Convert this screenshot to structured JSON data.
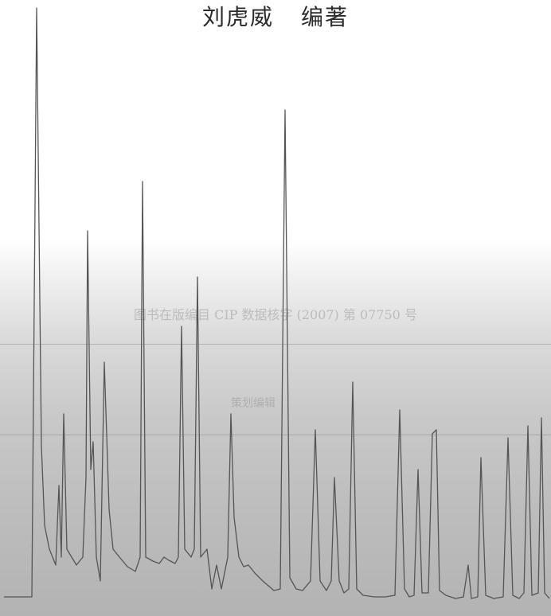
{
  "page": {
    "title_author": "刘虎威",
    "title_role": "编著",
    "ghost_text_line1": "图书在版编目 CIP 数据核字 (2007) 第 07750 号",
    "ghost_text_line2": "策划编辑"
  },
  "chart_data": {
    "type": "line",
    "title": "",
    "xlabel": "",
    "ylabel": "",
    "series": [
      {
        "values": [
          [
            5,
            750
          ],
          [
            40,
            750
          ],
          [
            46,
            10
          ],
          [
            52,
            560
          ],
          [
            56,
            660
          ],
          [
            62,
            690
          ],
          [
            70,
            710
          ],
          [
            74,
            610
          ],
          [
            77,
            700
          ],
          [
            80,
            520
          ],
          [
            84,
            690
          ],
          [
            90,
            700
          ],
          [
            96,
            710
          ],
          [
            104,
            700
          ],
          [
            108,
            600
          ],
          [
            110,
            290
          ],
          [
            114,
            590
          ],
          [
            117,
            555
          ],
          [
            121,
            700
          ],
          [
            126,
            730
          ],
          [
            131,
            455
          ],
          [
            137,
            640
          ],
          [
            142,
            690
          ],
          [
            150,
            700
          ],
          [
            160,
            712
          ],
          [
            170,
            718
          ],
          [
            176,
            700
          ],
          [
            179,
            228
          ],
          [
            183,
            700
          ],
          [
            192,
            705
          ],
          [
            200,
            708
          ],
          [
            206,
            700
          ],
          [
            212,
            704
          ],
          [
            220,
            708
          ],
          [
            224,
            700
          ],
          [
            228,
            410
          ],
          [
            232,
            690
          ],
          [
            240,
            700
          ],
          [
            244,
            690
          ],
          [
            248,
            348
          ],
          [
            252,
            700
          ],
          [
            260,
            690
          ],
          [
            266,
            740
          ],
          [
            272,
            710
          ],
          [
            278,
            740
          ],
          [
            286,
            700
          ],
          [
            290,
            520
          ],
          [
            294,
            650
          ],
          [
            300,
            700
          ],
          [
            306,
            712
          ],
          [
            312,
            710
          ],
          [
            320,
            720
          ],
          [
            330,
            730
          ],
          [
            344,
            742
          ],
          [
            352,
            740
          ],
          [
            358,
            138
          ],
          [
            364,
            726
          ],
          [
            372,
            740
          ],
          [
            380,
            742
          ],
          [
            390,
            730
          ],
          [
            396,
            540
          ],
          [
            402,
            730
          ],
          [
            410,
            742
          ],
          [
            416,
            730
          ],
          [
            420,
            600
          ],
          [
            426,
            730
          ],
          [
            432,
            745
          ],
          [
            438,
            740
          ],
          [
            443,
            480
          ],
          [
            448,
            740
          ],
          [
            456,
            748
          ],
          [
            470,
            750
          ],
          [
            484,
            750
          ],
          [
            496,
            748
          ],
          [
            502,
            515
          ],
          [
            508,
            740
          ],
          [
            514,
            750
          ],
          [
            520,
            748
          ],
          [
            525,
            590
          ],
          [
            530,
            745
          ],
          [
            538,
            745
          ],
          [
            543,
            545
          ],
          [
            548,
            540
          ],
          [
            552,
            742
          ],
          [
            560,
            748
          ],
          [
            572,
            752
          ],
          [
            582,
            750
          ],
          [
            588,
            710
          ],
          [
            592,
            752
          ],
          [
            600,
            750
          ],
          [
            604,
            575
          ],
          [
            610,
            748
          ],
          [
            620,
            752
          ],
          [
            632,
            750
          ],
          [
            638,
            550
          ],
          [
            644,
            748
          ],
          [
            652,
            752
          ],
          [
            658,
            745
          ],
          [
            663,
            535
          ],
          [
            668,
            748
          ],
          [
            676,
            745
          ],
          [
            680,
            525
          ],
          [
            684,
            745
          ],
          [
            690,
            752
          ]
        ]
      }
    ]
  }
}
